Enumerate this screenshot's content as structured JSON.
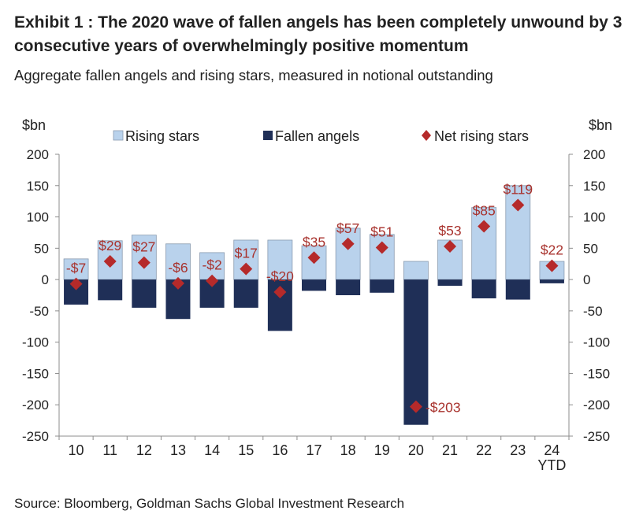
{
  "header": {
    "title": "Exhibit 1 : The 2020 wave of fallen angels has been completely unwound by 3 consecutive years of overwhelmingly positive momentum",
    "subtitle": "Aggregate fallen angels and rising stars, measured in notional outstanding"
  },
  "footer": {
    "source": "Source: Bloomberg, Goldman Sachs Global Investment Research"
  },
  "colors": {
    "rising": "#b9d2ec",
    "fallen": "#1f2f57",
    "net": "#b52a2a",
    "axis": "#8c8c8c",
    "label": "#a8322d"
  },
  "chart_data": {
    "type": "bar",
    "categories": [
      "10",
      "11",
      "12",
      "13",
      "14",
      "15",
      "16",
      "17",
      "18",
      "19",
      "20",
      "21",
      "22",
      "23",
      "24\nYTD"
    ],
    "series": [
      {
        "name": "Rising stars",
        "values": [
          33,
          62,
          71,
          57,
          43,
          63,
          63,
          54,
          82,
          72,
          29,
          63,
          115,
          150,
          29
        ]
      },
      {
        "name": "Fallen angels",
        "values": [
          -40,
          -33,
          -45,
          -63,
          -45,
          -45,
          -82,
          -18,
          -25,
          -21,
          -232,
          -10,
          -30,
          -32,
          -6
        ]
      },
      {
        "name": "Net rising stars",
        "values": [
          -7,
          29,
          27,
          -6,
          -2,
          17,
          -20,
          35,
          57,
          51,
          -203,
          53,
          85,
          119,
          22
        ]
      }
    ],
    "net_labels": [
      "-$7",
      "$29",
      "$27",
      "-$6",
      "-$2",
      "$17",
      "-$20",
      "$35",
      "$57",
      "$51",
      "-$203",
      "$53",
      "$85",
      "$119",
      "$22"
    ],
    "ylim": [
      -250,
      200
    ],
    "yticks": [
      200,
      150,
      100,
      50,
      0,
      -50,
      -100,
      -150,
      -200,
      -250
    ],
    "left_axis_label": "$bn",
    "right_axis_label": "$bn",
    "legend_position": "top"
  }
}
